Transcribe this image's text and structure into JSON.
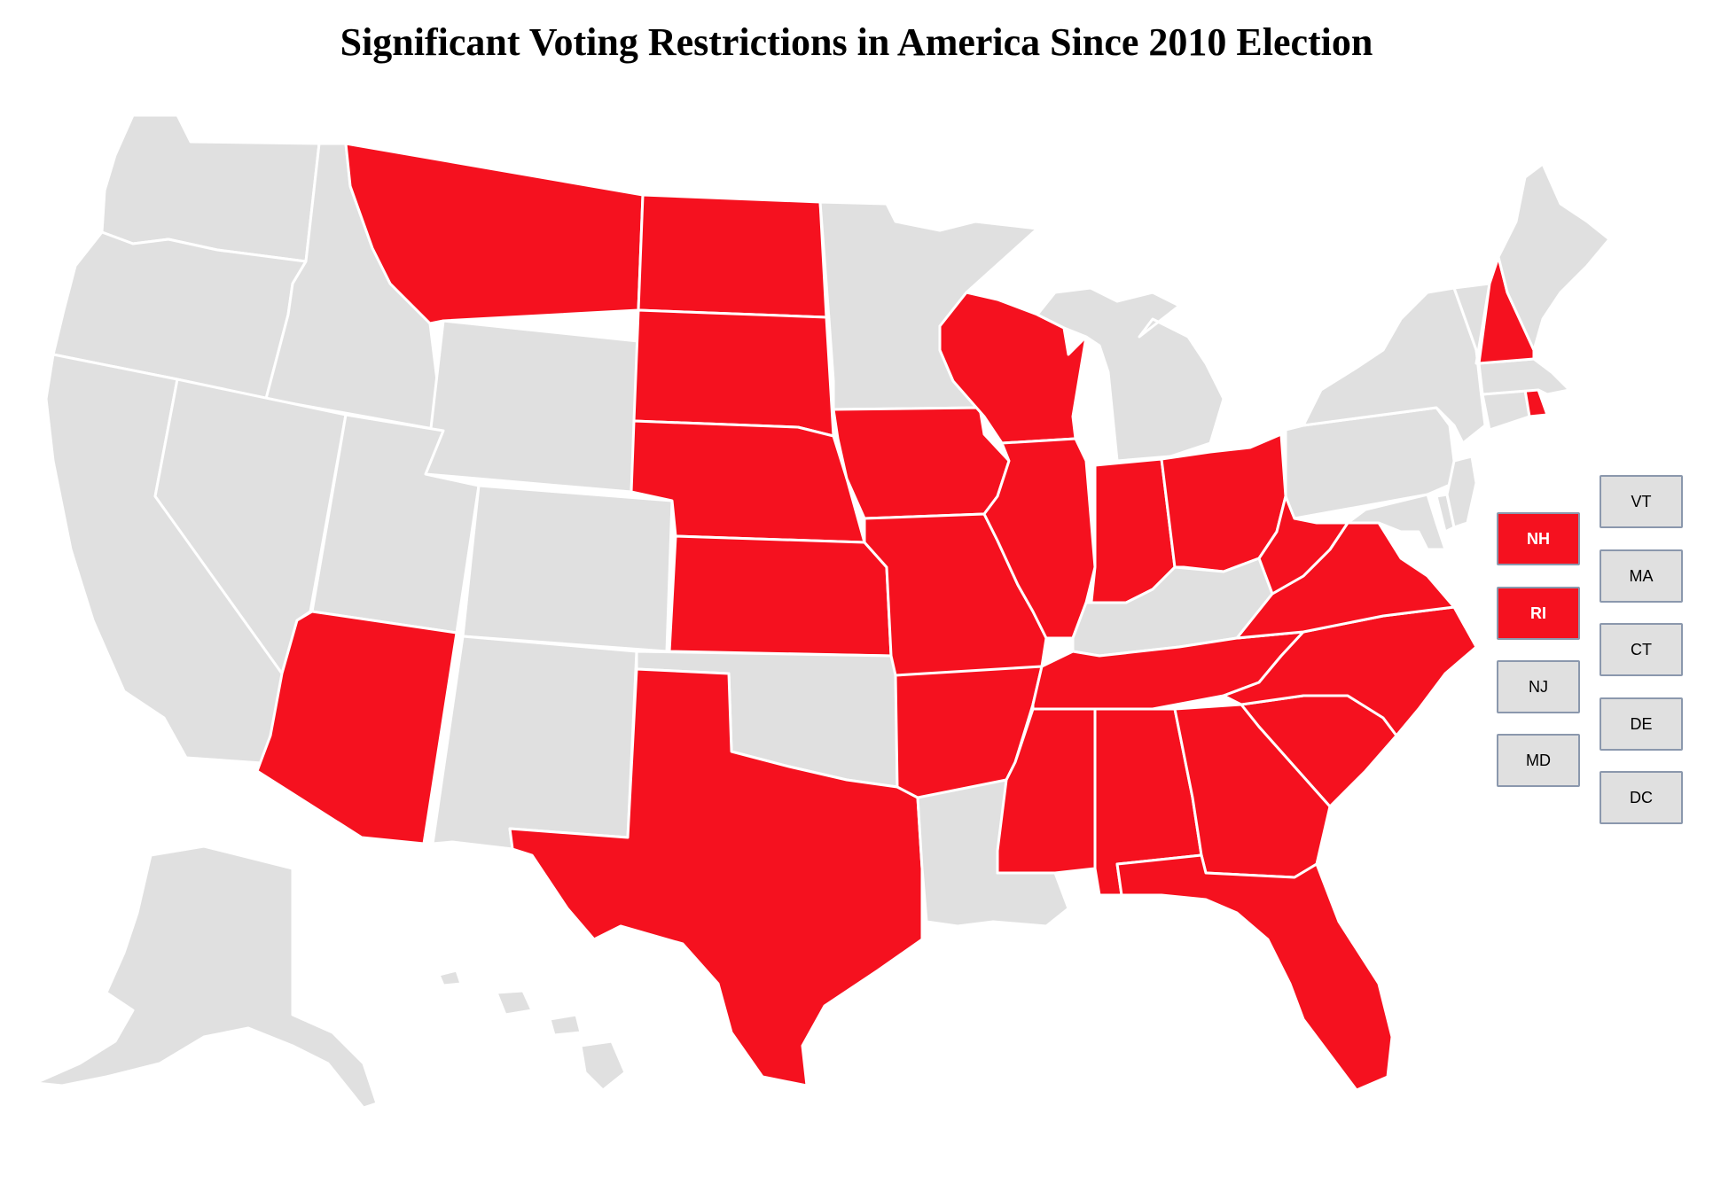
{
  "title": "Significant Voting Restrictions in America Since 2010 Election",
  "colors": {
    "restricted": "#f5111f",
    "other": "#e0e0e0",
    "border": "#ffffff",
    "box_border": "#8b98ad"
  },
  "restricted_states": [
    "MT",
    "ND",
    "SD",
    "NE",
    "KS",
    "TX",
    "AZ",
    "IA",
    "MO",
    "AR",
    "MS",
    "AL",
    "GA",
    "SC",
    "NC",
    "TN",
    "FL",
    "WI",
    "IL",
    "IN",
    "OH",
    "WV",
    "VA",
    "NH",
    "RI"
  ],
  "state_boxes": [
    {
      "code": "NH",
      "label": "NH",
      "restricted": true
    },
    {
      "code": "RI",
      "label": "RI",
      "restricted": true
    },
    {
      "code": "NJ",
      "label": "NJ",
      "restricted": false
    },
    {
      "code": "MD",
      "label": "MD",
      "restricted": false
    },
    {
      "code": "VT",
      "label": "VT",
      "restricted": false
    },
    {
      "code": "MA",
      "label": "MA",
      "restricted": false
    },
    {
      "code": "CT",
      "label": "CT",
      "restricted": false
    },
    {
      "code": "DE",
      "label": "DE",
      "restricted": false
    },
    {
      "code": "DC",
      "label": "DC",
      "restricted": false
    }
  ]
}
